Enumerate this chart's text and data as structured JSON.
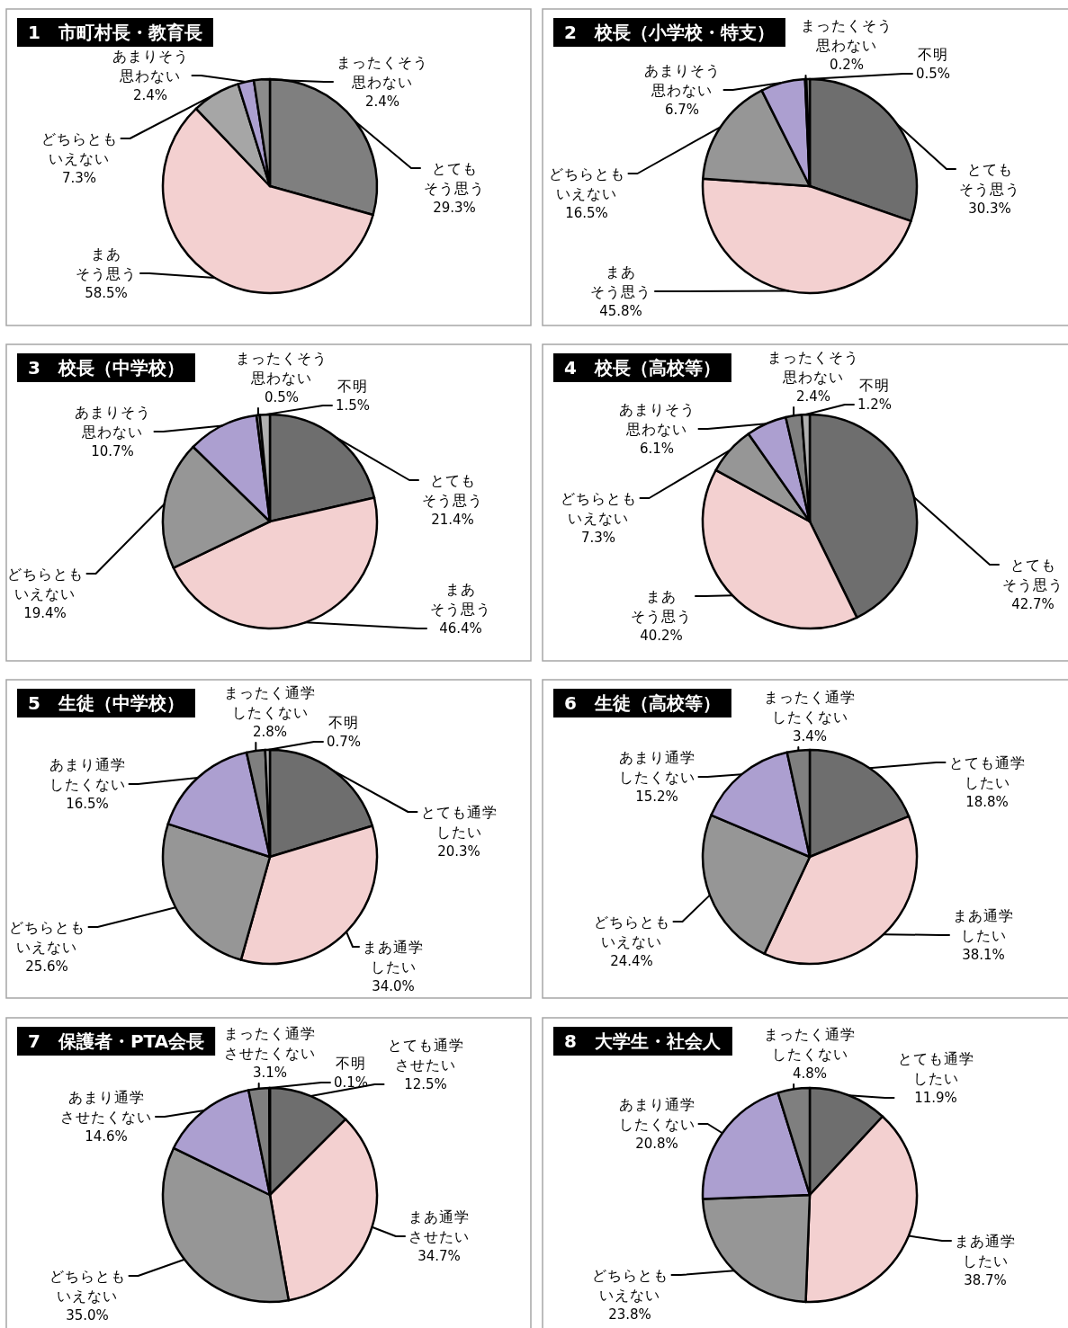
{
  "chart_data": [
    {
      "type": "pie",
      "title": "1　市町村長・教育長",
      "categories": [
        "とてもそう思う",
        "まあそう思う",
        "どちらともいえない",
        "あまりそう思わない",
        "まったくそう思わない"
      ],
      "values": [
        29.3,
        58.5,
        7.3,
        2.4,
        2.4
      ],
      "value_labels": [
        "29.3%",
        "58.5%",
        "7.3%",
        "2.4%",
        "2.4%"
      ],
      "colors": [
        "#7f7f7f",
        "#f3d0d0",
        "#a6a6a6",
        "#ac9fd0",
        "#8c8c8c"
      ]
    },
    {
      "type": "pie",
      "title": "2　校長（小学校・特支）",
      "categories": [
        "とてもそう思う",
        "まあそう思う",
        "どちらともいえない",
        "あまりそう思わない",
        "まったくそう思わない",
        "不明"
      ],
      "values": [
        30.3,
        45.8,
        16.5,
        6.7,
        0.2,
        0.5
      ],
      "value_labels": [
        "30.3%",
        "45.8%",
        "16.5%",
        "6.7%",
        "0.2%",
        "0.5%"
      ],
      "colors": [
        "#6e6e6e",
        "#f3d0d0",
        "#969696",
        "#ac9fd0",
        "#7f7f7f",
        "#b0b0b0"
      ]
    },
    {
      "type": "pie",
      "title": "3　校長（中学校）",
      "categories": [
        "とてもそう思う",
        "まあそう思う",
        "どちらともいえない",
        "あまりそう思わない",
        "まったくそう思わない",
        "不明"
      ],
      "values": [
        21.4,
        46.4,
        19.4,
        10.7,
        0.5,
        1.5
      ],
      "value_labels": [
        "21.4%",
        "46.4%",
        "19.4%",
        "10.7%",
        "0.5%",
        "1.5%"
      ],
      "colors": [
        "#6e6e6e",
        "#f3d0d0",
        "#969696",
        "#ac9fd0",
        "#7f7f7f",
        "#b0b0b0"
      ]
    },
    {
      "type": "pie",
      "title": "4　校長（高校等）",
      "categories": [
        "とてもそう思う",
        "まあそう思う",
        "どちらともいえない",
        "あまりそう思わない",
        "まったくそう思わない",
        "不明"
      ],
      "values": [
        42.7,
        40.2,
        7.3,
        6.1,
        2.4,
        1.2
      ],
      "value_labels": [
        "42.7%",
        "40.2%",
        "7.3%",
        "6.1%",
        "2.4%",
        "1.2%"
      ],
      "colors": [
        "#6e6e6e",
        "#f3d0d0",
        "#969696",
        "#ac9fd0",
        "#7f7f7f",
        "#b0b0b0"
      ]
    },
    {
      "type": "pie",
      "title": "5　生徒（中学校）",
      "categories": [
        "とても通学したい",
        "まあ通学したい",
        "どちらともいえない",
        "あまり通学したくない",
        "まったく通学したくない",
        "不明"
      ],
      "values": [
        20.3,
        34.0,
        25.6,
        16.5,
        2.8,
        0.7
      ],
      "value_labels": [
        "20.3%",
        "34.0%",
        "25.6%",
        "16.5%",
        "2.8%",
        "0.7%"
      ],
      "colors": [
        "#6e6e6e",
        "#f3d0d0",
        "#969696",
        "#ac9fd0",
        "#7f7f7f",
        "#b0b0b0"
      ]
    },
    {
      "type": "pie",
      "title": "6　生徒（高校等）",
      "categories": [
        "とても通学したい",
        "まあ通学したい",
        "どちらともいえない",
        "あまり通学したくない",
        "まったく通学したくない"
      ],
      "values": [
        18.8,
        38.1,
        24.4,
        15.2,
        3.4
      ],
      "value_labels": [
        "18.8%",
        "38.1%",
        "24.4%",
        "15.2%",
        "3.4%"
      ],
      "colors": [
        "#6e6e6e",
        "#f3d0d0",
        "#969696",
        "#ac9fd0",
        "#7f7f7f"
      ]
    },
    {
      "type": "pie",
      "title": "7　保護者・PTA会長",
      "categories": [
        "とても通学させたい",
        "まあ通学させたい",
        "どちらともいえない",
        "あまり通学させたくない",
        "まったく通学させたくない",
        "不明"
      ],
      "values": [
        12.5,
        34.7,
        35.0,
        14.6,
        3.1,
        0.1
      ],
      "value_labels": [
        "12.5%",
        "34.7%",
        "35.0%",
        "14.6%",
        "3.1%",
        "0.1%"
      ],
      "colors": [
        "#6e6e6e",
        "#f3d0d0",
        "#969696",
        "#ac9fd0",
        "#7f7f7f",
        "#b0b0b0"
      ]
    },
    {
      "type": "pie",
      "title": "8　大学生・社会人",
      "categories": [
        "とても通学したい",
        "まあ通学したい",
        "どちらともいえない",
        "あまり通学したくない",
        "まったく通学したくない"
      ],
      "values": [
        11.9,
        38.7,
        23.8,
        20.8,
        4.8
      ],
      "value_labels": [
        "11.9%",
        "38.7%",
        "23.8%",
        "20.8%",
        "4.8%"
      ],
      "colors": [
        "#6e6e6e",
        "#f3d0d0",
        "#969696",
        "#ac9fd0",
        "#7f7f7f"
      ]
    }
  ]
}
